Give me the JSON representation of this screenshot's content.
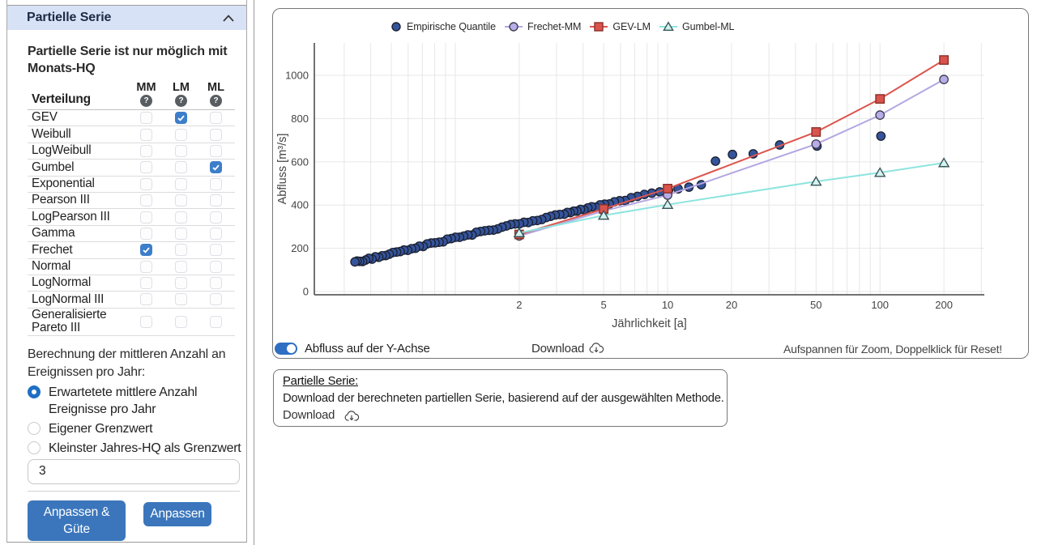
{
  "sidebar": {
    "header": {
      "title": "Partielle Serie"
    },
    "note": "Partielle Serie ist nur möglich mit Monats-HQ",
    "table": {
      "first_col_header": "Verteilung",
      "method_cols": [
        "MM",
        "LM",
        "ML"
      ],
      "rows": [
        {
          "label": "GEV",
          "checked": [
            "LM"
          ]
        },
        {
          "label": "Weibull",
          "checked": []
        },
        {
          "label": "LogWeibull",
          "checked": []
        },
        {
          "label": "Gumbel",
          "checked": [
            "ML"
          ]
        },
        {
          "label": "Exponential",
          "checked": []
        },
        {
          "label": "Pearson III",
          "checked": []
        },
        {
          "label": "LogPearson III",
          "checked": []
        },
        {
          "label": "Gamma",
          "checked": []
        },
        {
          "label": "Frechet",
          "checked": [
            "MM"
          ]
        },
        {
          "label": "Normal",
          "checked": []
        },
        {
          "label": "LogNormal",
          "checked": []
        },
        {
          "label": "LogNormal III",
          "checked": []
        },
        {
          "label": "Generalisierte Pareto III",
          "checked": []
        }
      ]
    },
    "radio_group": {
      "label": "Berechnung der mittleren Anzahl an Ereignissen pro Jahr:",
      "options": [
        {
          "label": "Erwartetete mittlere Anzahl Ereignisse pro Jahr",
          "selected": true
        },
        {
          "label": "Eigener Grenzwert",
          "selected": false
        },
        {
          "label": "Kleinster Jahres-HQ als Grenzwert",
          "selected": false
        }
      ]
    },
    "threshold_input": {
      "value": "3"
    },
    "buttons": [
      {
        "label": "Anpassen & Güte"
      },
      {
        "label": "Anpassen"
      }
    ]
  },
  "chart_panel": {
    "toggle": {
      "label": "Abfluss auf der Y-Achse",
      "on": true
    },
    "download_label": "Download",
    "zoom_hint": "Aufspannen für Zoom, Doppelklick für Reset!"
  },
  "info_box": {
    "title": "Partielle Serie:",
    "description": "Download der berechneten partiellen Serie, basierend auf der ausgewählten Methode.",
    "download_label": "Download"
  },
  "chart_data": {
    "type": "scatter",
    "x_axis": {
      "label": "Jährlichkeit [a]",
      "scale": "log",
      "tick_values": [
        2,
        5,
        10,
        20,
        50,
        100,
        200
      ],
      "gridline_values": [
        0.3,
        0.4,
        0.5,
        0.6,
        0.7,
        0.8,
        0.9,
        1,
        2,
        3,
        4,
        5,
        6,
        7,
        8,
        9,
        10,
        20,
        30,
        40,
        50,
        60,
        70,
        80,
        90,
        100,
        200,
        300
      ],
      "range": [
        0.217,
        310
      ]
    },
    "y_axis": {
      "label": "Abfluss [m³/s]",
      "tick_values": [
        0,
        200,
        400,
        600,
        800,
        1000
      ],
      "range": [
        -15,
        1150
      ]
    },
    "series": [
      {
        "name": "Empirische Quantile",
        "mode": "markers",
        "marker": "circle",
        "marker_color": "#35549b",
        "marker_outline": "#1b2030",
        "points": [
          [
            101,
            719
          ],
          [
            50.5,
            673
          ],
          [
            33.7,
            678
          ],
          [
            25.3,
            637
          ],
          [
            20.2,
            634
          ],
          [
            16.8,
            603
          ],
          [
            14.4,
            494
          ],
          [
            12.6,
            483
          ],
          [
            11.2,
            475
          ],
          [
            10.1,
            468
          ],
          [
            9.18,
            461
          ],
          [
            8.42,
            455
          ],
          [
            7.77,
            449
          ],
          [
            7.21,
            440
          ],
          [
            6.73,
            434
          ],
          [
            6.31,
            421
          ],
          [
            5.94,
            420
          ],
          [
            5.61,
            415
          ],
          [
            5.32,
            405
          ],
          [
            5.05,
            404
          ],
          [
            4.81,
            401
          ],
          [
            4.59,
            390
          ],
          [
            4.39,
            392
          ],
          [
            4.21,
            387
          ],
          [
            4.04,
            378
          ],
          [
            3.89,
            380
          ],
          [
            3.74,
            372
          ],
          [
            3.61,
            372
          ],
          [
            3.48,
            365
          ],
          [
            3.37,
            366
          ]
        ],
        "band": {
          "t_from": 3.26,
          "t_to": 0.337,
          "count": 54,
          "left_densify": 1.15,
          "trend_u_y": [
            [
              -0.48,
              133
            ],
            [
              0,
              248
            ],
            [
              1,
              468
            ]
          ],
          "jitter": 4.5
        }
      },
      {
        "name": "Frechet-MM",
        "mode": "lines+markers",
        "marker": "circle",
        "marker_color": "#b9ade8",
        "marker_outline": "#3c3c50",
        "line_color": "#b3a7e2",
        "points": [
          [
            2,
            257
          ],
          [
            5,
            373
          ],
          [
            10,
            446
          ],
          [
            50,
            682
          ],
          [
            100,
            816
          ],
          [
            200,
            981
          ]
        ]
      },
      {
        "name": "GEV-LM",
        "mode": "lines+markers",
        "marker": "square",
        "marker_color": "#d9544d",
        "marker_outline": "#8c2f28",
        "line_color": "#dd554e",
        "points": [
          [
            2,
            264
          ],
          [
            5,
            382
          ],
          [
            10,
            476
          ],
          [
            50,
            738
          ],
          [
            100,
            891
          ],
          [
            200,
            1071
          ]
        ]
      },
      {
        "name": "Gumbel-ML",
        "mode": "lines+markers",
        "marker": "triangle-up",
        "marker_color": "#d4f2ee",
        "marker_outline": "#37555a",
        "line_color": "#8de4de",
        "points": [
          [
            2,
            271
          ],
          [
            5,
            352
          ],
          [
            10,
            402
          ],
          [
            50,
            509
          ],
          [
            100,
            550
          ],
          [
            200,
            595
          ]
        ]
      }
    ],
    "legend": {
      "position": "top",
      "items": [
        "Empirische Quantile",
        "Frechet-MM",
        "GEV-LM",
        "Gumbel-ML"
      ]
    }
  }
}
